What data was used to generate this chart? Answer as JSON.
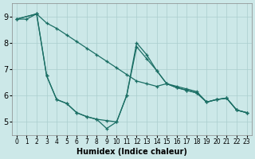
{
  "xlabel": "Humidex (Indice chaleur)",
  "bg_color": "#cce8e8",
  "line_color": "#1a6e64",
  "grid_color": "#aacece",
  "xlim": [
    -0.5,
    23.5
  ],
  "ylim": [
    4.5,
    9.5
  ],
  "xticks": [
    0,
    1,
    2,
    3,
    4,
    5,
    6,
    7,
    8,
    9,
    10,
    11,
    12,
    13,
    14,
    15,
    16,
    17,
    18,
    19,
    20,
    21,
    22,
    23
  ],
  "yticks": [
    5,
    6,
    7,
    8,
    9
  ],
  "line1_x": [
    0,
    1,
    2,
    3,
    4,
    5,
    6,
    7,
    8,
    9,
    10,
    11,
    12,
    13,
    14,
    15,
    16,
    17,
    18,
    19,
    20,
    21,
    22,
    23
  ],
  "line1_y": [
    8.9,
    8.9,
    9.1,
    8.75,
    8.55,
    8.3,
    8.05,
    7.8,
    7.55,
    7.3,
    7.05,
    6.8,
    6.55,
    6.45,
    6.35,
    6.45,
    6.35,
    6.25,
    6.15,
    5.75,
    5.85,
    5.9,
    5.45,
    5.35
  ],
  "line2_x": [
    0,
    2,
    3,
    4,
    5,
    6,
    7,
    8,
    9,
    10,
    11,
    12,
    13,
    14,
    15,
    16,
    17,
    18,
    19,
    20,
    21,
    22,
    23
  ],
  "line2_y": [
    8.9,
    9.1,
    6.75,
    5.85,
    5.7,
    5.35,
    5.2,
    5.1,
    4.75,
    5.0,
    6.0,
    8.0,
    7.55,
    6.95,
    6.45,
    6.3,
    6.2,
    6.1,
    5.75,
    5.85,
    5.9,
    5.45,
    5.35
  ],
  "line3_x": [
    0,
    2,
    3,
    4,
    5,
    6,
    7,
    8,
    9,
    10,
    11,
    12,
    13,
    14,
    15,
    16,
    17,
    18,
    19,
    20,
    21,
    22,
    23
  ],
  "line3_y": [
    8.9,
    9.1,
    6.75,
    5.85,
    5.7,
    5.35,
    5.2,
    5.1,
    5.05,
    5.0,
    6.0,
    7.85,
    7.4,
    6.95,
    6.45,
    6.3,
    6.2,
    6.1,
    5.75,
    5.85,
    5.9,
    5.45,
    5.35
  ],
  "marker": "+",
  "markersize": 3.5,
  "linewidth": 0.9
}
